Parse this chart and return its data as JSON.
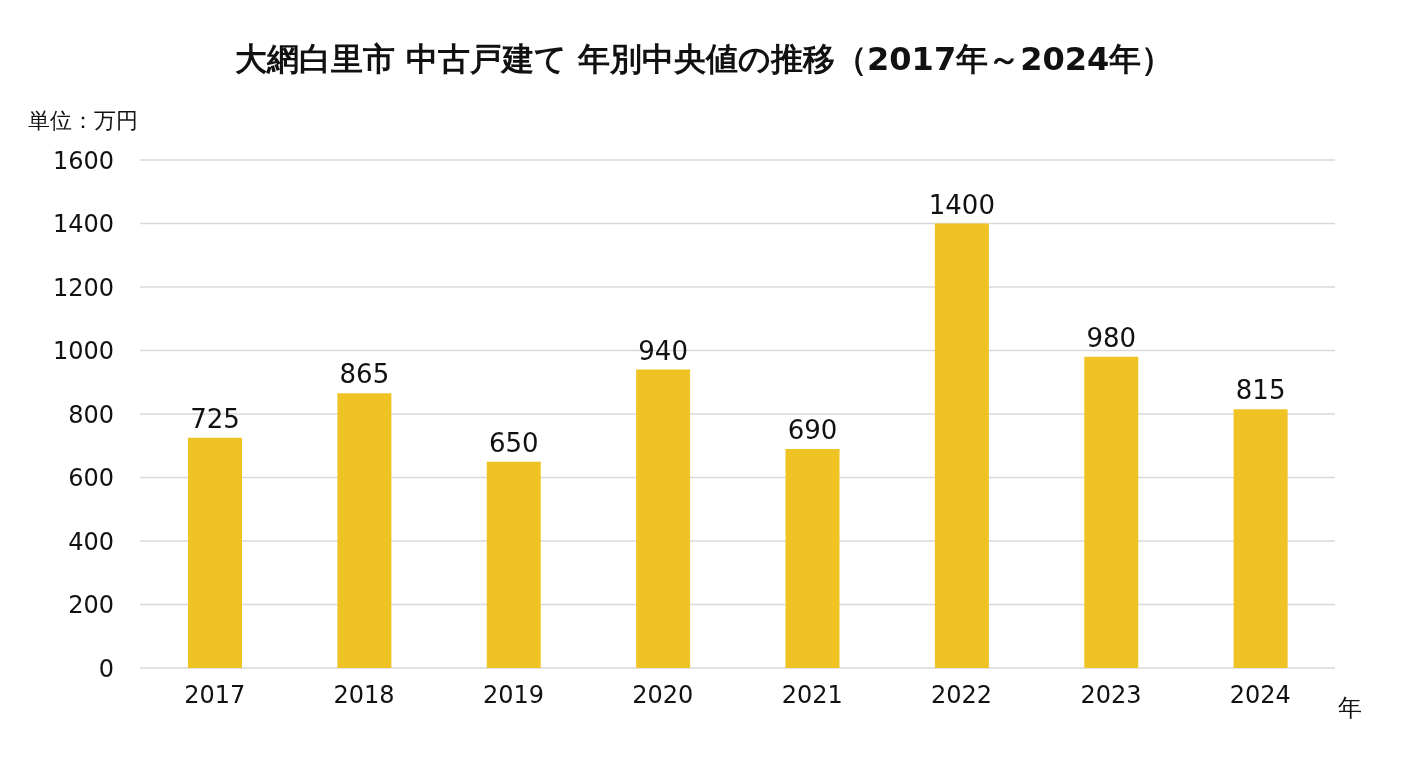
{
  "chart_data": {
    "type": "bar",
    "title": "大網白里市 中古戸建て 年別中央値の推移（2017年～2024年）",
    "ylabel": "単位：万円",
    "xlabel": "年",
    "categories": [
      "2017",
      "2018",
      "2019",
      "2020",
      "2021",
      "2022",
      "2023",
      "2024"
    ],
    "values": [
      725,
      865,
      650,
      940,
      690,
      1400,
      980,
      815
    ],
    "color": "#f0c325",
    "ylim": [
      0,
      1600
    ],
    "yticks": [
      0,
      200,
      400,
      600,
      800,
      1000,
      1200,
      1400,
      1600
    ],
    "grid": "y",
    "data_labels": true
  }
}
